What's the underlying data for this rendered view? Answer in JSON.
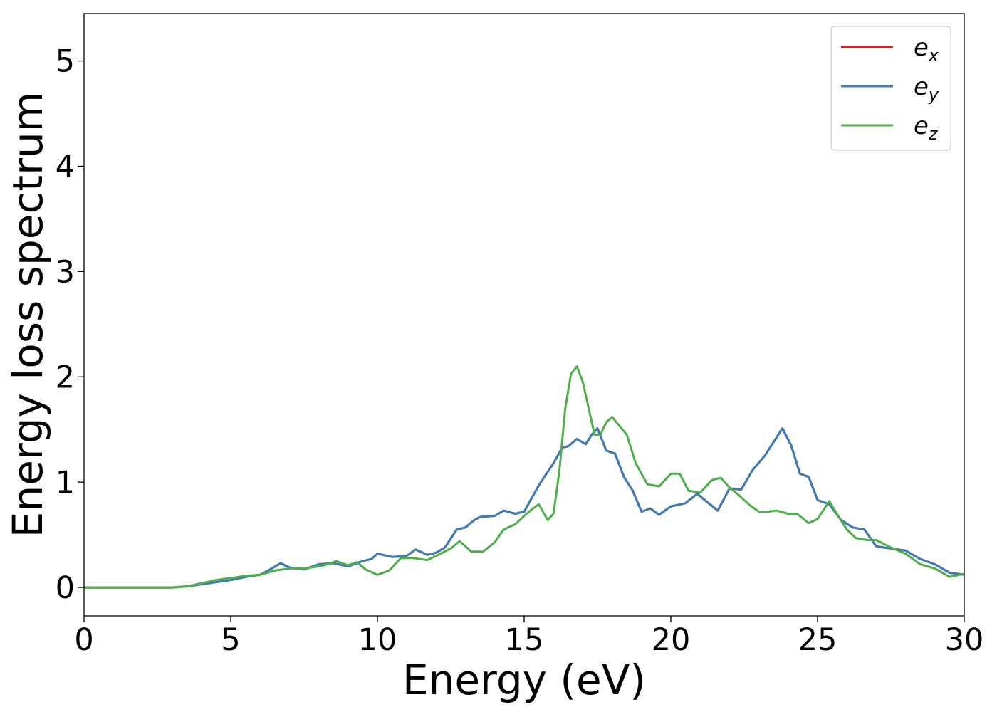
{
  "chart_data": {
    "type": "line",
    "title": "",
    "xlabel": "Energy (eV)",
    "ylabel": "Energy loss spectrum",
    "xlim": [
      0,
      30
    ],
    "ylim": [
      -0.27,
      5.45
    ],
    "xticks": [
      0,
      5,
      10,
      15,
      20,
      25,
      30
    ],
    "xtick_labels": [
      "0",
      "5",
      "10",
      "15",
      "20",
      "25",
      "30"
    ],
    "yticks": [
      0,
      1,
      2,
      3,
      4,
      5
    ],
    "ytick_labels": [
      "0",
      "1",
      "2",
      "3",
      "4",
      "5"
    ],
    "grid": false,
    "legend_position": "top-right",
    "series": [
      {
        "name": "e_x",
        "name_base": "e",
        "name_sub": "x",
        "color": "#e41a1c",
        "x": [
          0,
          1,
          2,
          3,
          3.5,
          4,
          4.5,
          5,
          5.5,
          6,
          6.4,
          6.7,
          7,
          7.5,
          8,
          8.5,
          9,
          9.5,
          9.8,
          10,
          10.5,
          11,
          11.3,
          11.7,
          12,
          12.3,
          12.7,
          13,
          13.3,
          13.5,
          14,
          14.3,
          14.7,
          15,
          15.5,
          16,
          16.3,
          16.5,
          16.8,
          17.1,
          17.3,
          17.5,
          17.8,
          18.1,
          18.4,
          18.7,
          19,
          19.3,
          19.6,
          20,
          20.5,
          20.9,
          21.2,
          21.6,
          22,
          22.4,
          22.8,
          23.2,
          23.5,
          23.8,
          24.1,
          24.4,
          24.7,
          25,
          25.4,
          25.8,
          26.2,
          26.6,
          27,
          27.5,
          28,
          28.5,
          29,
          29.5,
          30
        ],
        "y": [
          0.0,
          0.0,
          0.0,
          0.0,
          0.01,
          0.03,
          0.05,
          0.07,
          0.1,
          0.12,
          0.18,
          0.23,
          0.19,
          0.17,
          0.22,
          0.23,
          0.2,
          0.25,
          0.27,
          0.32,
          0.29,
          0.3,
          0.36,
          0.31,
          0.33,
          0.38,
          0.55,
          0.57,
          0.64,
          0.67,
          0.68,
          0.73,
          0.7,
          0.72,
          0.97,
          1.18,
          1.33,
          1.34,
          1.41,
          1.36,
          1.45,
          1.51,
          1.3,
          1.27,
          1.05,
          0.92,
          0.72,
          0.75,
          0.69,
          0.77,
          0.8,
          0.89,
          0.82,
          0.73,
          0.94,
          0.93,
          1.12,
          1.25,
          1.38,
          1.51,
          1.35,
          1.08,
          1.05,
          0.83,
          0.79,
          0.64,
          0.57,
          0.55,
          0.39,
          0.37,
          0.35,
          0.27,
          0.22,
          0.14,
          0.12
        ]
      },
      {
        "name": "e_y",
        "name_base": "e",
        "name_sub": "y",
        "color": "#377eb8",
        "x": [
          0,
          1,
          2,
          3,
          3.5,
          4,
          4.5,
          5,
          5.5,
          6,
          6.4,
          6.7,
          7,
          7.5,
          8,
          8.5,
          9,
          9.5,
          9.8,
          10,
          10.5,
          11,
          11.3,
          11.7,
          12,
          12.3,
          12.7,
          13,
          13.3,
          13.5,
          14,
          14.3,
          14.7,
          15,
          15.5,
          16,
          16.3,
          16.5,
          16.8,
          17.1,
          17.3,
          17.5,
          17.8,
          18.1,
          18.4,
          18.7,
          19,
          19.3,
          19.6,
          20,
          20.5,
          20.9,
          21.2,
          21.6,
          22,
          22.4,
          22.8,
          23.2,
          23.5,
          23.8,
          24.1,
          24.4,
          24.7,
          25,
          25.4,
          25.8,
          26.2,
          26.6,
          27,
          27.5,
          28,
          28.5,
          29,
          29.5,
          30
        ],
        "y": [
          0.0,
          0.0,
          0.0,
          0.0,
          0.01,
          0.03,
          0.05,
          0.07,
          0.1,
          0.12,
          0.18,
          0.23,
          0.19,
          0.17,
          0.22,
          0.23,
          0.2,
          0.25,
          0.27,
          0.32,
          0.29,
          0.3,
          0.36,
          0.31,
          0.33,
          0.38,
          0.55,
          0.57,
          0.64,
          0.67,
          0.68,
          0.73,
          0.7,
          0.72,
          0.97,
          1.18,
          1.33,
          1.34,
          1.41,
          1.36,
          1.45,
          1.51,
          1.3,
          1.27,
          1.05,
          0.92,
          0.72,
          0.75,
          0.69,
          0.77,
          0.8,
          0.89,
          0.82,
          0.73,
          0.94,
          0.93,
          1.12,
          1.25,
          1.38,
          1.51,
          1.35,
          1.08,
          1.05,
          0.83,
          0.79,
          0.64,
          0.57,
          0.55,
          0.39,
          0.37,
          0.35,
          0.27,
          0.22,
          0.14,
          0.12
        ]
      },
      {
        "name": "e_z",
        "name_base": "e",
        "name_sub": "z",
        "color": "#4daf4a",
        "x": [
          0,
          1,
          2,
          3,
          3.5,
          4,
          4.5,
          5,
          5.5,
          6,
          6.5,
          7,
          7.5,
          8,
          8.3,
          8.6,
          9,
          9.3,
          9.6,
          10,
          10.4,
          10.8,
          11.2,
          11.7,
          12,
          12.5,
          12.8,
          13.2,
          13.6,
          14,
          14.3,
          14.7,
          15,
          15.3,
          15.5,
          15.8,
          16,
          16.2,
          16.4,
          16.6,
          16.8,
          17,
          17.2,
          17.4,
          17.6,
          17.8,
          18,
          18.2,
          18.5,
          18.8,
          19.2,
          19.6,
          20,
          20.3,
          20.6,
          21,
          21.4,
          21.7,
          22,
          22.3,
          22.7,
          23,
          23.3,
          23.6,
          24,
          24.3,
          24.7,
          25,
          25.4,
          25.7,
          26,
          26.3,
          26.7,
          27,
          27.5,
          28,
          28.5,
          29,
          29.5,
          30
        ],
        "y": [
          0.0,
          0.0,
          0.0,
          0.0,
          0.01,
          0.04,
          0.07,
          0.09,
          0.11,
          0.12,
          0.16,
          0.18,
          0.18,
          0.2,
          0.22,
          0.25,
          0.21,
          0.24,
          0.17,
          0.12,
          0.16,
          0.28,
          0.28,
          0.26,
          0.3,
          0.37,
          0.44,
          0.34,
          0.34,
          0.43,
          0.55,
          0.6,
          0.68,
          0.75,
          0.79,
          0.64,
          0.7,
          1.1,
          1.7,
          2.03,
          2.1,
          1.95,
          1.7,
          1.45,
          1.45,
          1.57,
          1.62,
          1.55,
          1.45,
          1.18,
          0.98,
          0.96,
          1.08,
          1.08,
          0.92,
          0.9,
          1.02,
          1.04,
          0.95,
          0.88,
          0.78,
          0.72,
          0.72,
          0.73,
          0.7,
          0.7,
          0.61,
          0.65,
          0.82,
          0.68,
          0.55,
          0.47,
          0.45,
          0.45,
          0.38,
          0.32,
          0.22,
          0.18,
          0.1,
          0.13
        ]
      }
    ]
  }
}
